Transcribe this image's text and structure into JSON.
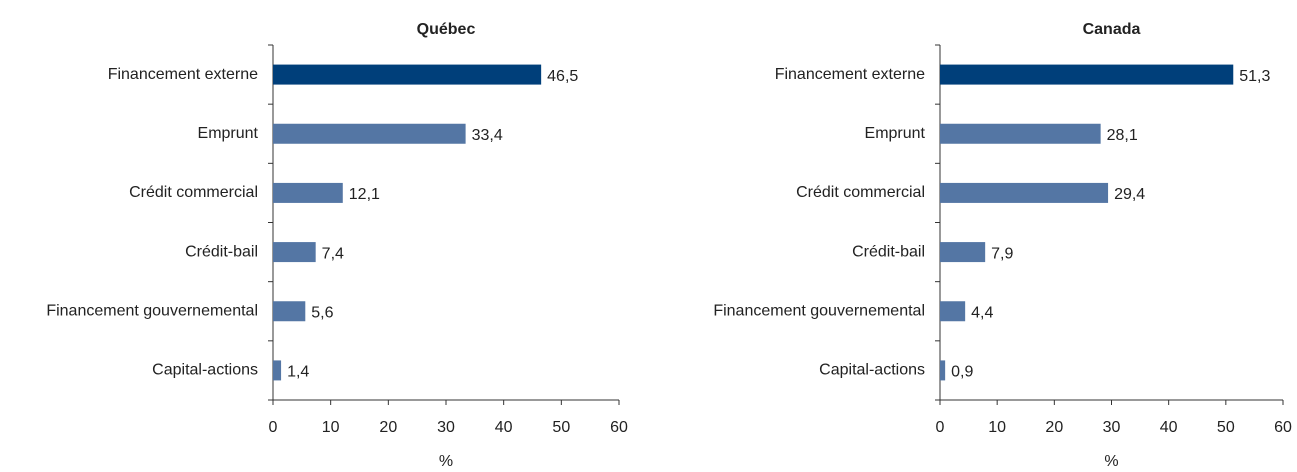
{
  "chart_data": [
    {
      "type": "hbar",
      "title": "Québec",
      "x_label": "%",
      "categories": [
        "Financement externe",
        "Emprunt",
        "Crédit commercial",
        "Crédit-bail",
        "Financement gouvernemental",
        "Capital-actions"
      ],
      "values": [
        46.5,
        33.4,
        12.1,
        7.4,
        5.6,
        1.4
      ],
      "value_labels": [
        "46,5",
        "33,4",
        "12,1",
        "7,4",
        "5,6",
        "1,4"
      ],
      "colors": [
        "#003f7a",
        "#5476a4",
        "#5476a4",
        "#5476a4",
        "#5476a4",
        "#5476a4"
      ],
      "xlim": [
        0,
        60
      ],
      "xticks": [
        0,
        10,
        20,
        30,
        40,
        50,
        60
      ]
    },
    {
      "type": "hbar",
      "title": "Canada",
      "x_label": "%",
      "categories": [
        "Financement externe",
        "Emprunt",
        "Crédit commercial",
        "Crédit-bail",
        "Financement gouvernemental",
        "Capital-actions"
      ],
      "values": [
        51.3,
        28.1,
        29.4,
        7.9,
        4.4,
        0.9
      ],
      "value_labels": [
        "51,3",
        "28,1",
        "29,4",
        "7,9",
        "4,4",
        "0,9"
      ],
      "colors": [
        "#003f7a",
        "#5476a4",
        "#5476a4",
        "#5476a4",
        "#5476a4",
        "#5476a4"
      ],
      "xlim": [
        0,
        60
      ],
      "xticks": [
        0,
        10,
        20,
        30,
        40,
        50,
        60
      ]
    }
  ]
}
